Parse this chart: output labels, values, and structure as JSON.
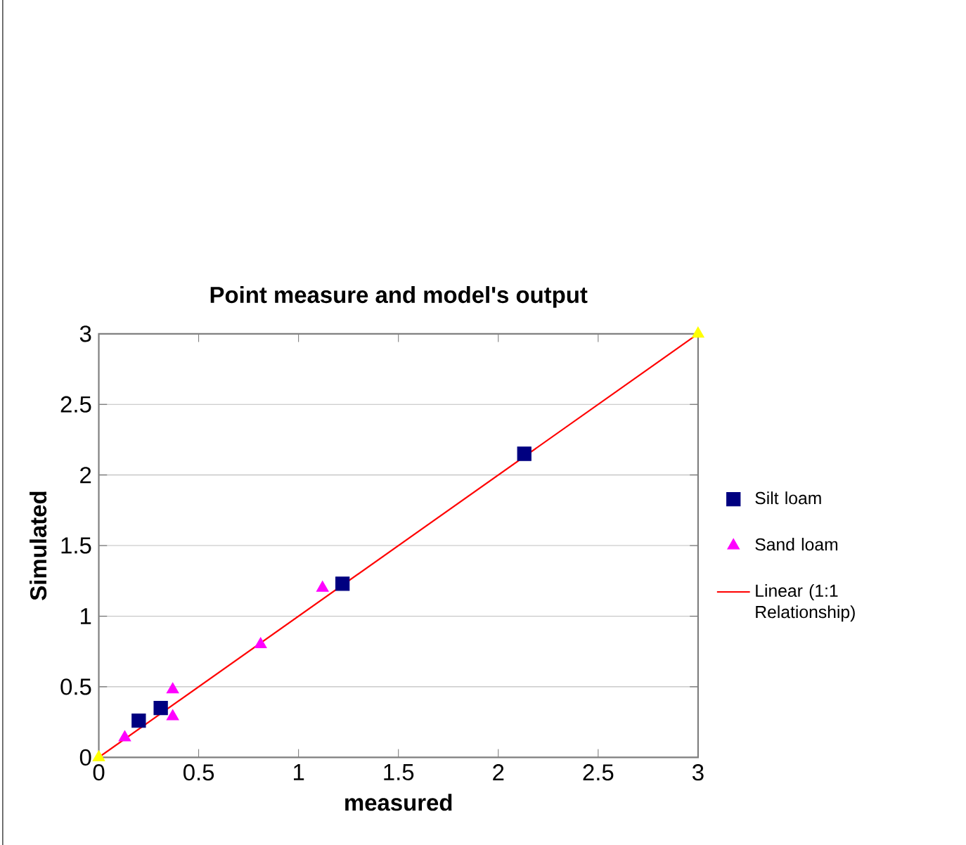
{
  "chart_data": {
    "type": "scatter",
    "title": "Point measure and model's output",
    "xlabel": "measured",
    "ylabel": "Simulated",
    "xlim": [
      0,
      3
    ],
    "ylim": [
      0,
      3
    ],
    "xticks": [
      0,
      0.5,
      1,
      1.5,
      2,
      2.5,
      3
    ],
    "yticks": [
      0,
      0.5,
      1,
      1.5,
      2,
      2.5,
      3
    ],
    "grid": "y",
    "legend": "right",
    "series": [
      {
        "name": "Silt loam",
        "color": "#000080",
        "marker": "square",
        "x": [
          0.2,
          0.31,
          1.22,
          2.13
        ],
        "values": [
          0.26,
          0.35,
          1.23,
          2.15
        ]
      },
      {
        "name": "Sand loam",
        "color": "#ff00ff",
        "marker": "triangle",
        "x": [
          0.13,
          0.37,
          0.37,
          0.81,
          1.12
        ],
        "values": [
          0.14,
          0.48,
          0.29,
          0.8,
          1.2
        ]
      },
      {
        "color": "#ffff00",
        "marker": "triangle",
        "x": [
          0,
          3
        ],
        "values": [
          0,
          3
        ]
      },
      {
        "name": "Linear (1:1 Relationship)",
        "type": "line",
        "color": "#ff0000",
        "marker": "none",
        "line_style": "solid",
        "x": [
          0,
          3
        ],
        "values": [
          0,
          3
        ]
      }
    ]
  }
}
